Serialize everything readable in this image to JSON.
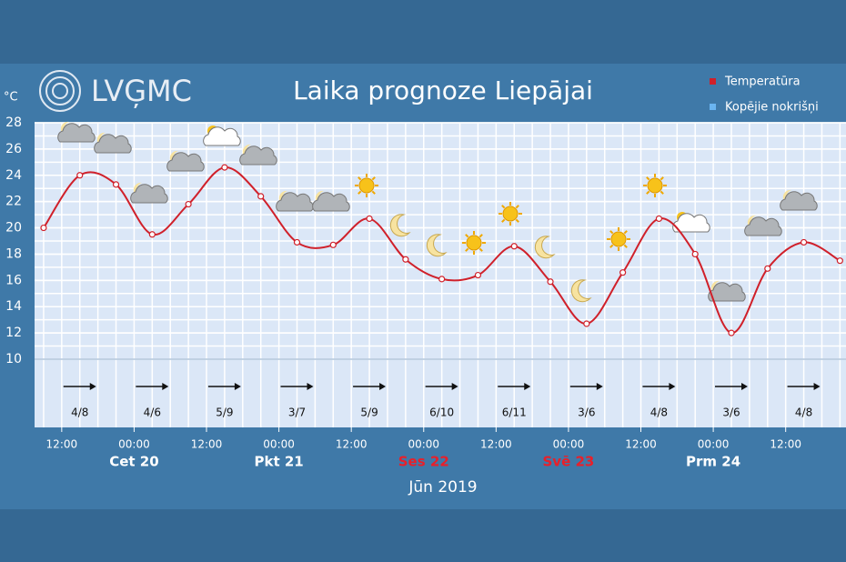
{
  "chart_data": {
    "type": "line",
    "title": "Laika prognoze Liepājai",
    "logo": "LVĢMC",
    "y_unit": "°C",
    "x": [
      9,
      15,
      21,
      27,
      33,
      39,
      45,
      51,
      57,
      63,
      69,
      75,
      81,
      87,
      93,
      99,
      105,
      111,
      117,
      123,
      129,
      135,
      141
    ],
    "series": [
      {
        "name": "Temperatūra",
        "color": "#d0202a",
        "values": [
          20.0,
          24.0,
          23.3,
          19.5,
          21.8,
          24.6,
          22.4,
          18.9,
          18.7,
          20.7,
          17.6,
          16.1,
          16.4,
          18.6,
          15.9,
          12.7,
          16.6,
          20.7,
          18.0,
          12.0,
          16.9,
          18.9,
          17.5
        ]
      },
      {
        "name": "Kopējie nokrišņi",
        "color": "#6ab4f0",
        "values": [
          null,
          null,
          null,
          null,
          null,
          null,
          null,
          null,
          null,
          null,
          null,
          null,
          null,
          null,
          null,
          null,
          null,
          null,
          null,
          null,
          null,
          null,
          null
        ]
      }
    ],
    "xlim": [
      7.5,
      142
    ],
    "xticks": [
      {
        "value": 12,
        "label": "12:00"
      },
      {
        "value": 24,
        "label": "00:00"
      },
      {
        "value": 36,
        "label": "12:00"
      },
      {
        "value": 48,
        "label": "00:00"
      },
      {
        "value": 60,
        "label": "12:00"
      },
      {
        "value": 72,
        "label": "00:00"
      },
      {
        "value": 84,
        "label": "12:00"
      },
      {
        "value": 96,
        "label": "00:00"
      },
      {
        "value": 108,
        "label": "12:00"
      },
      {
        "value": 120,
        "label": "00:00"
      },
      {
        "value": 132,
        "label": "12:00"
      }
    ],
    "ylim": [
      10,
      28
    ],
    "yticks": [
      10,
      12,
      14,
      16,
      18,
      20,
      22,
      24,
      26,
      28
    ],
    "grid": true,
    "days": [
      {
        "value": 24,
        "label": "Cet 20",
        "color": "#ffffff"
      },
      {
        "value": 48,
        "label": "Pkt 21",
        "color": "#ffffff"
      },
      {
        "value": 72,
        "label": "Ses 22",
        "color": "#e8202a"
      },
      {
        "value": 96,
        "label": "Svē 23",
        "color": "#e8202a"
      },
      {
        "value": 120,
        "label": "Prm 24",
        "color": "#ffffff"
      }
    ],
    "month_label": "Jūn 2019",
    "wind": {
      "x": [
        15,
        27,
        39,
        51,
        63,
        75,
        87,
        99,
        111,
        123,
        135
      ],
      "labels": [
        "4/8",
        "4/6",
        "5/9",
        "3/7",
        "5/9",
        "6/10",
        "6/11",
        "3/6",
        "4/8",
        "3/6",
        "4/8"
      ]
    }
  }
}
